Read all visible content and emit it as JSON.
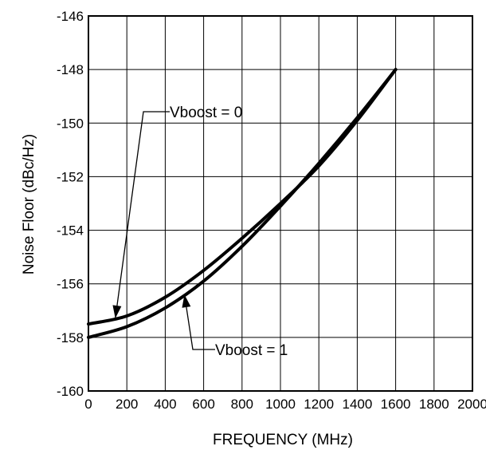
{
  "chart_data": {
    "type": "line",
    "title": "",
    "xlabel": "FREQUENCY (MHz)",
    "ylabel": "Noise Floor (dBc/Hz)",
    "xlim": [
      0,
      2000
    ],
    "ylim": [
      -160,
      -146
    ],
    "grid": true,
    "x_ticks": [
      "0",
      "200",
      "400",
      "600",
      "800",
      "1000",
      "1200",
      "1400",
      "1600",
      "1800",
      "2000"
    ],
    "y_ticks": [
      "-146",
      "-148",
      "-150",
      "-152",
      "-154",
      "-156",
      "-158",
      "-160"
    ],
    "series": [
      {
        "name": "Vboost = 0",
        "x": [
          0,
          200,
          400,
          600,
          800,
          1000,
          1200,
          1400,
          1600
        ],
        "y": [
          -157.5,
          -157.2,
          -156.5,
          -155.5,
          -154.3,
          -153.0,
          -151.6,
          -149.9,
          -148.0
        ]
      },
      {
        "name": "Vboost = 1",
        "x": [
          0,
          200,
          400,
          600,
          800,
          1000,
          1200,
          1400,
          1600
        ],
        "y": [
          -158.0,
          -157.6,
          -156.9,
          -155.9,
          -154.6,
          -153.1,
          -151.5,
          -149.8,
          -148.0
        ]
      }
    ],
    "annotations": [
      {
        "text": "Vboost = 0",
        "series": 0,
        "points_to_x": 140
      },
      {
        "text": "Vboost = 1",
        "series": 1,
        "points_to_x": 500
      }
    ]
  }
}
